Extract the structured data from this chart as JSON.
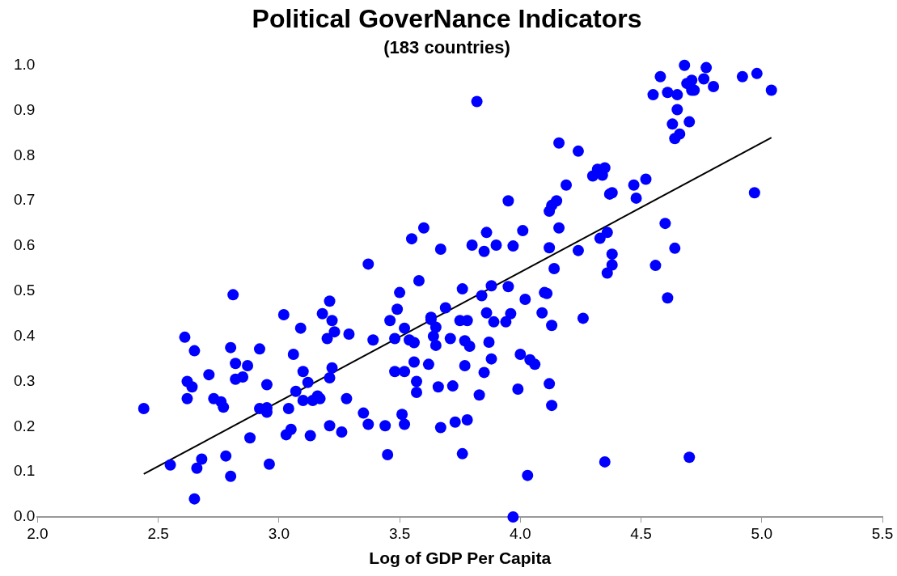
{
  "chart_data": {
    "type": "scatter",
    "title": "Political GoverNance Indicators",
    "subtitle": "(183 countries)",
    "xlabel": "Log of GDP Per Capita",
    "xlim": [
      2.0,
      5.5
    ],
    "xticks": [
      {
        "value": 2.0,
        "label": "2.0"
      },
      {
        "value": 2.5,
        "label": "2.5"
      },
      {
        "value": 3.0,
        "label": "3.0"
      },
      {
        "value": 3.5,
        "label": "3.5"
      },
      {
        "value": 4.0,
        "label": "4.0"
      },
      {
        "value": 4.5,
        "label": "4.5"
      },
      {
        "value": 5.0,
        "label": "5.0"
      },
      {
        "value": 5.5,
        "label": "5.5"
      }
    ],
    "ylim": [
      0.0,
      1.0
    ],
    "yticks": [
      {
        "value": 0,
        "label": "0.0"
      },
      {
        "value": 0.1,
        "label": "0.1"
      },
      {
        "value": 0.2,
        "label": "0.2"
      },
      {
        "value": 0.3,
        "label": "0.3"
      },
      {
        "value": 0.4,
        "label": "0.4"
      },
      {
        "value": 0.5,
        "label": "0.5"
      },
      {
        "value": 0.6,
        "label": "0.6"
      },
      {
        "value": 0.7,
        "label": "0.7"
      },
      {
        "value": 0.8,
        "label": "0.8"
      },
      {
        "value": 0.9,
        "label": "0.9"
      },
      {
        "value": 1.0,
        "label": "1.0"
      }
    ],
    "series": [
      {
        "marker": "circle",
        "color": "#0000ff",
        "x": [
          2.44,
          2.55,
          2.61,
          2.62,
          2.62,
          2.64,
          2.65,
          2.65,
          2.66,
          2.68,
          2.71,
          2.73,
          2.76,
          2.77,
          2.78,
          2.8,
          2.8,
          2.81,
          2.82,
          2.82,
          2.85,
          2.87,
          2.88,
          2.92,
          2.92,
          2.95,
          2.95,
          2.95,
          2.96,
          3.02,
          3.03,
          3.04,
          3.05,
          3.06,
          3.07,
          3.09,
          3.1,
          3.1,
          3.12,
          3.13,
          3.14,
          3.16,
          3.17,
          3.18,
          3.2,
          3.21,
          3.21,
          3.21,
          3.22,
          3.22,
          3.23,
          3.26,
          3.28,
          3.29,
          3.35,
          3.37,
          3.37,
          3.39,
          3.44,
          3.45,
          3.46,
          3.48,
          3.48,
          3.49,
          3.5,
          3.51,
          3.52,
          3.52,
          3.52,
          3.54,
          3.55,
          3.56,
          3.56,
          3.57,
          3.57,
          3.58,
          3.6,
          3.62,
          3.63,
          3.63,
          3.64,
          3.65,
          3.65,
          3.66,
          3.67,
          3.67,
          3.69,
          3.71,
          3.72,
          3.73,
          3.75,
          3.76,
          3.76,
          3.77,
          3.77,
          3.78,
          3.78,
          3.79,
          3.8,
          3.82,
          3.83,
          3.84,
          3.85,
          3.85,
          3.86,
          3.86,
          3.87,
          3.88,
          3.88,
          3.89,
          3.9,
          3.94,
          3.95,
          3.95,
          3.96,
          3.97,
          3.97,
          3.99,
          4.0,
          4.01,
          4.02,
          4.03,
          4.04,
          4.06,
          4.09,
          4.1,
          4.11,
          4.12,
          4.12,
          4.12,
          4.13,
          4.13,
          4.13,
          4.14,
          4.15,
          4.16,
          4.16,
          4.19,
          4.24,
          4.24,
          4.26,
          4.3,
          4.32,
          4.33,
          4.34,
          4.35,
          4.35,
          4.36,
          4.36,
          4.37,
          4.38,
          4.38,
          4.38,
          4.47,
          4.48,
          4.52,
          4.55,
          4.56,
          4.58,
          4.6,
          4.61,
          4.61,
          4.63,
          4.64,
          4.64,
          4.65,
          4.65,
          4.66,
          4.68,
          4.69,
          4.7,
          4.7,
          4.71,
          4.71,
          4.72,
          4.76,
          4.77,
          4.8,
          4.92,
          4.97,
          4.98,
          5.04
        ],
        "values": [
          0.24,
          0.115,
          0.398,
          0.262,
          0.3,
          0.288,
          0.368,
          0.04,
          0.108,
          0.128,
          0.315,
          0.262,
          0.255,
          0.243,
          0.135,
          0.09,
          0.375,
          0.492,
          0.34,
          0.305,
          0.31,
          0.335,
          0.175,
          0.372,
          0.24,
          0.232,
          0.242,
          0.293,
          0.117,
          0.448,
          0.182,
          0.24,
          0.194,
          0.36,
          0.278,
          0.418,
          0.322,
          0.258,
          0.298,
          0.18,
          0.258,
          0.268,
          0.262,
          0.45,
          0.395,
          0.478,
          0.202,
          0.308,
          0.33,
          0.435,
          0.41,
          0.188,
          0.262,
          0.405,
          0.23,
          0.56,
          0.205,
          0.392,
          0.202,
          0.138,
          0.435,
          0.395,
          0.322,
          0.46,
          0.497,
          0.227,
          0.418,
          0.205,
          0.322,
          0.392,
          0.616,
          0.386,
          0.343,
          0.3,
          0.276,
          0.523,
          0.64,
          0.338,
          0.442,
          0.437,
          0.4,
          0.38,
          0.42,
          0.288,
          0.593,
          0.198,
          0.463,
          0.395,
          0.29,
          0.21,
          0.435,
          0.14,
          0.505,
          0.39,
          0.335,
          0.215,
          0.435,
          0.378,
          0.602,
          0.92,
          0.27,
          0.49,
          0.588,
          0.32,
          0.63,
          0.452,
          0.387,
          0.35,
          0.512,
          0.432,
          0.602,
          0.432,
          0.7,
          0.51,
          0.45,
          0.6,
          0.0,
          0.283,
          0.36,
          0.634,
          0.482,
          0.092,
          0.348,
          0.338,
          0.452,
          0.497,
          0.495,
          0.295,
          0.596,
          0.677,
          0.69,
          0.424,
          0.247,
          0.55,
          0.7,
          0.828,
          0.64,
          0.735,
          0.81,
          0.59,
          0.44,
          0.755,
          0.77,
          0.617,
          0.757,
          0.773,
          0.122,
          0.54,
          0.63,
          0.715,
          0.718,
          0.582,
          0.558,
          0.735,
          0.706,
          0.748,
          0.935,
          0.557,
          0.975,
          0.65,
          0.94,
          0.485,
          0.87,
          0.838,
          0.595,
          0.935,
          0.902,
          0.848,
          1.0,
          0.96,
          0.875,
          0.132,
          0.945,
          0.967,
          0.945,
          0.97,
          0.995,
          0.953,
          0.975,
          0.718,
          0.982,
          0.945
        ]
      },
      {
        "type": "line",
        "marker": "none",
        "color": "#000000",
        "x": [
          2.44,
          5.04
        ],
        "values": [
          0.095,
          0.84
        ]
      }
    ]
  }
}
